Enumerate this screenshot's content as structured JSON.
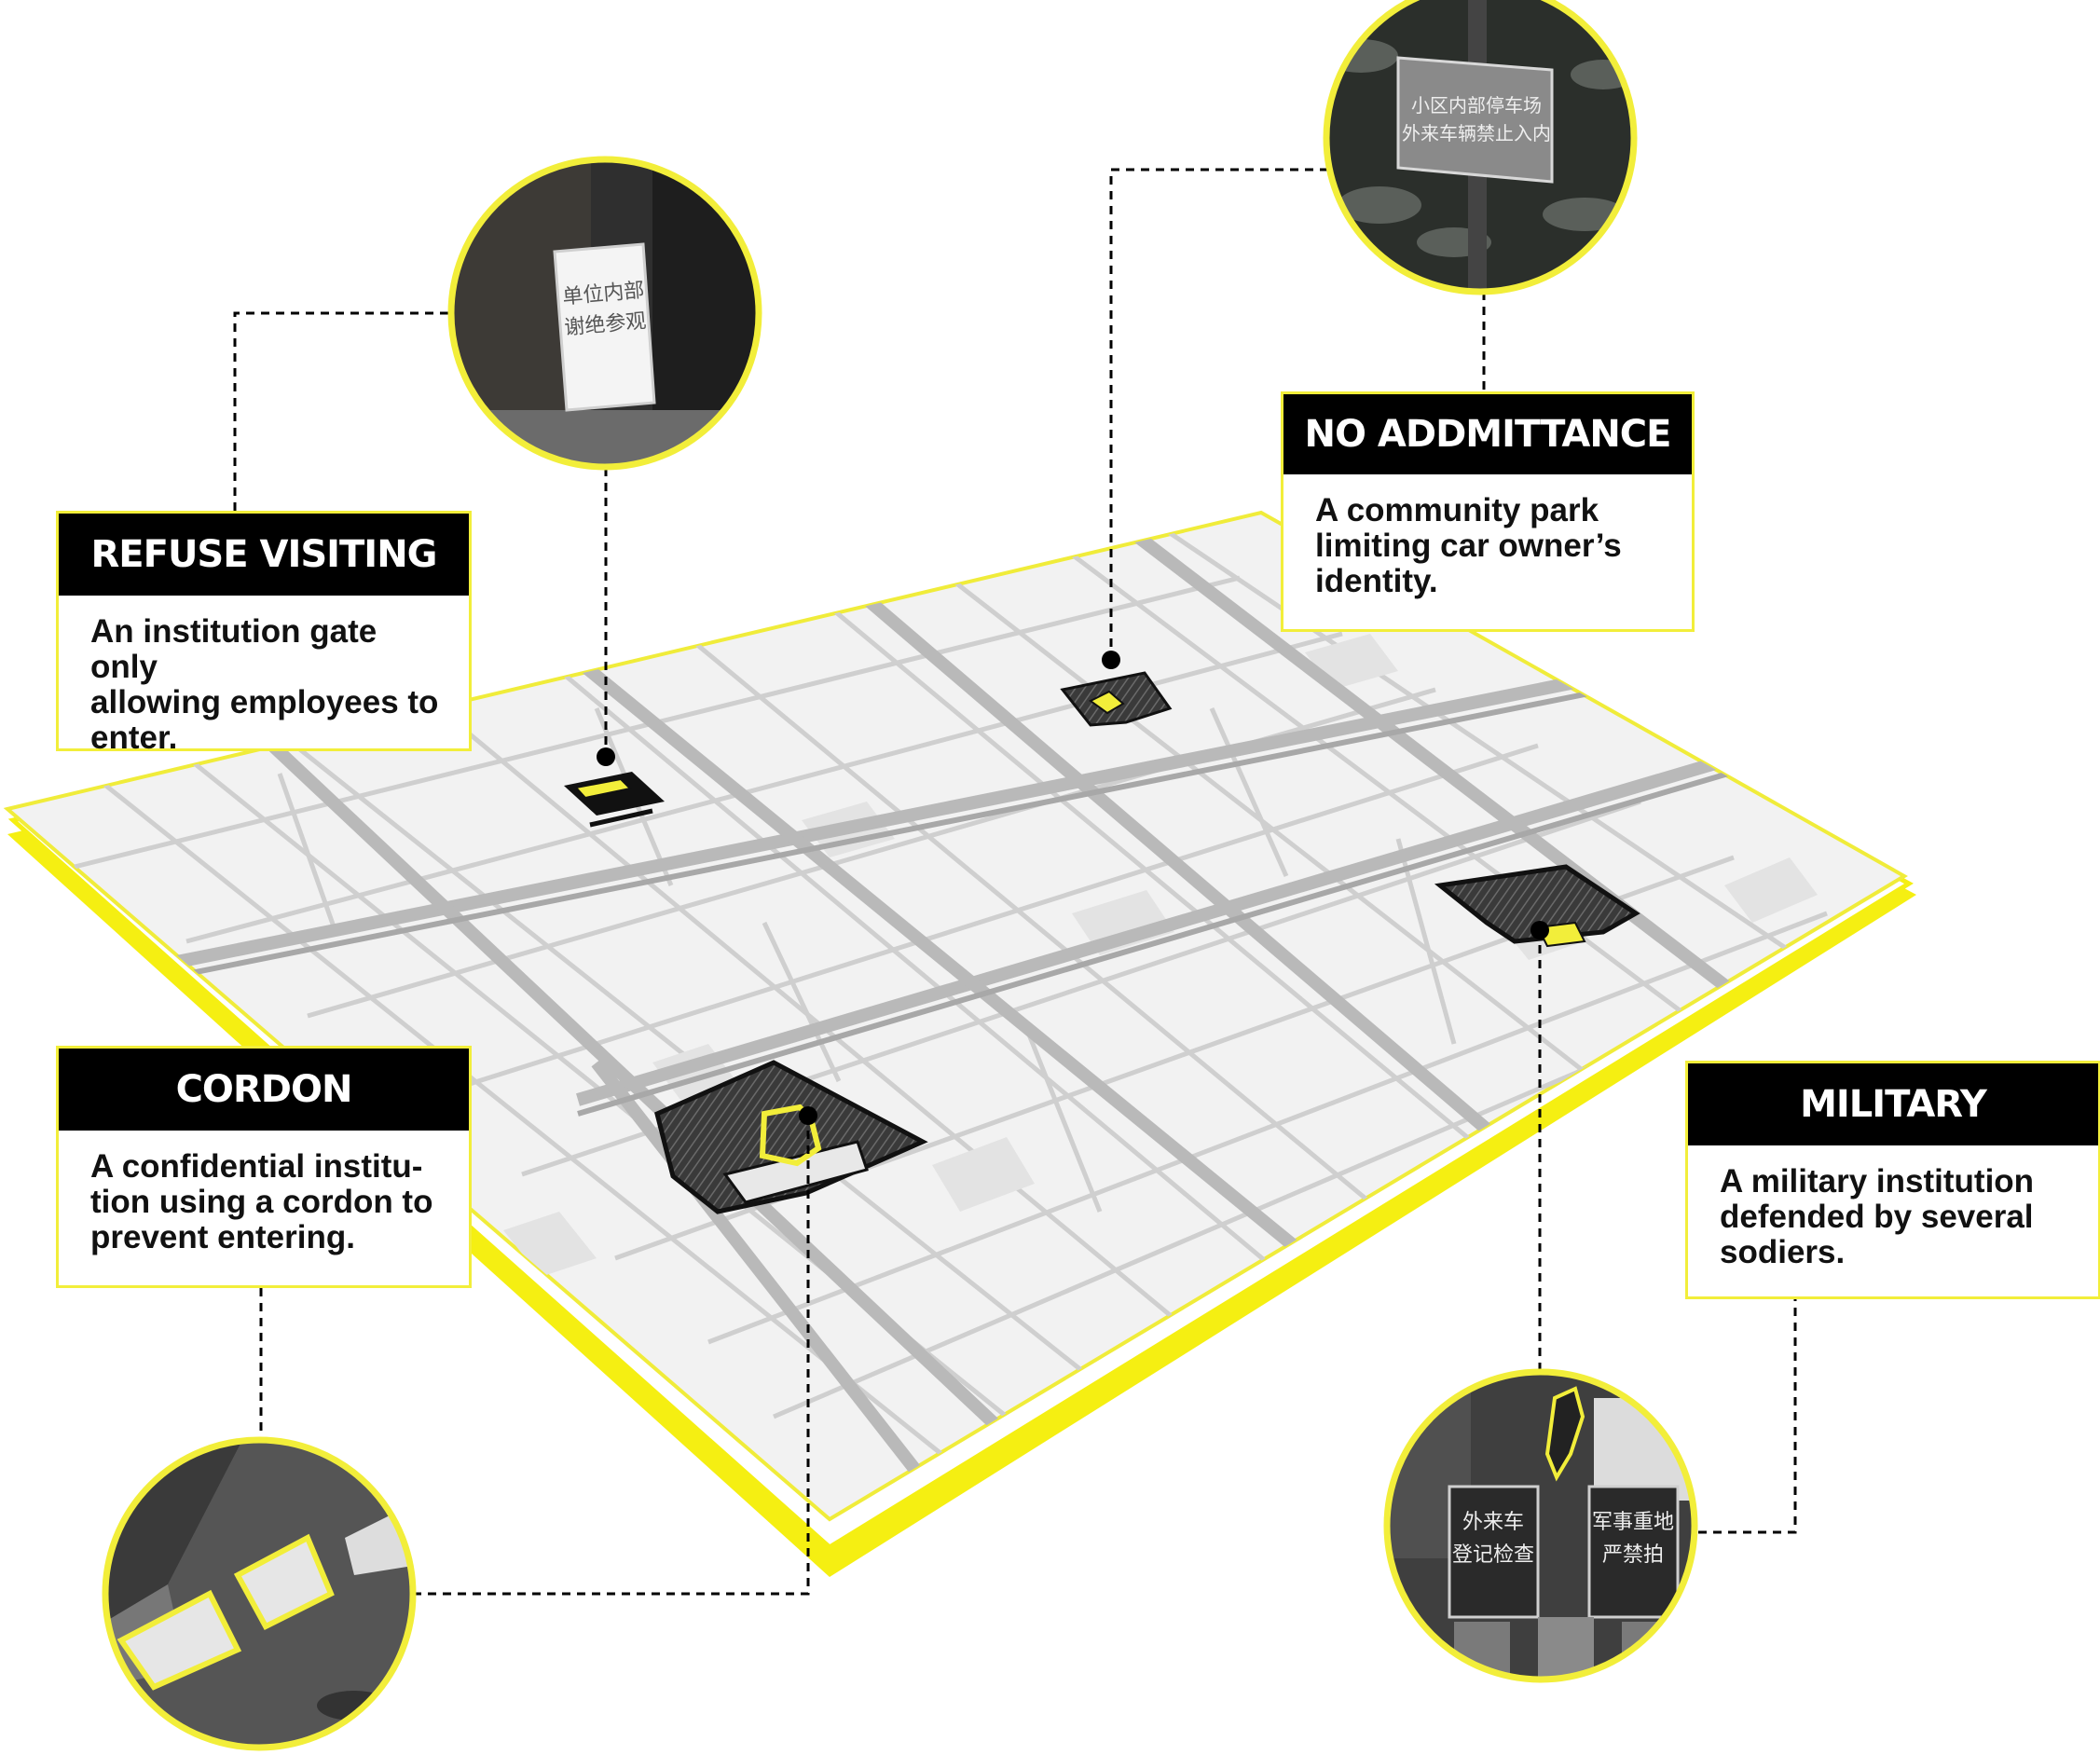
{
  "accent_color": "#f2ee3a",
  "callouts": {
    "refuse_visiting": {
      "title": "REFUSE VISITING",
      "lines": [
        "An institution gate only",
        "allowing employees to",
        "enter."
      ],
      "sign_text": [
        "单位内部",
        "谢绝参观"
      ]
    },
    "no_admittance": {
      "title": "NO ADDMITTANCE",
      "lines": [
        "A community park",
        "limiting car owner’s",
        "identity."
      ],
      "sign_text": [
        "小区内部停车场",
        "外来车辆禁止入内"
      ]
    },
    "cordon": {
      "title": "CORDON",
      "lines": [
        "A confidential institu-",
        "tion using a cordon to",
        "prevent entering."
      ]
    },
    "military": {
      "title": "MILITARY",
      "lines": [
        "A military institution",
        "defended by several",
        "sodiers."
      ],
      "sign_text": [
        "外来车",
        "登记检查",
        "军事重地",
        "严禁拍"
      ]
    }
  },
  "photo_icons": [
    "sign-photo-icon",
    "park-sign-photo-icon",
    "road-marking-photo-icon",
    "military-gate-photo-icon"
  ]
}
